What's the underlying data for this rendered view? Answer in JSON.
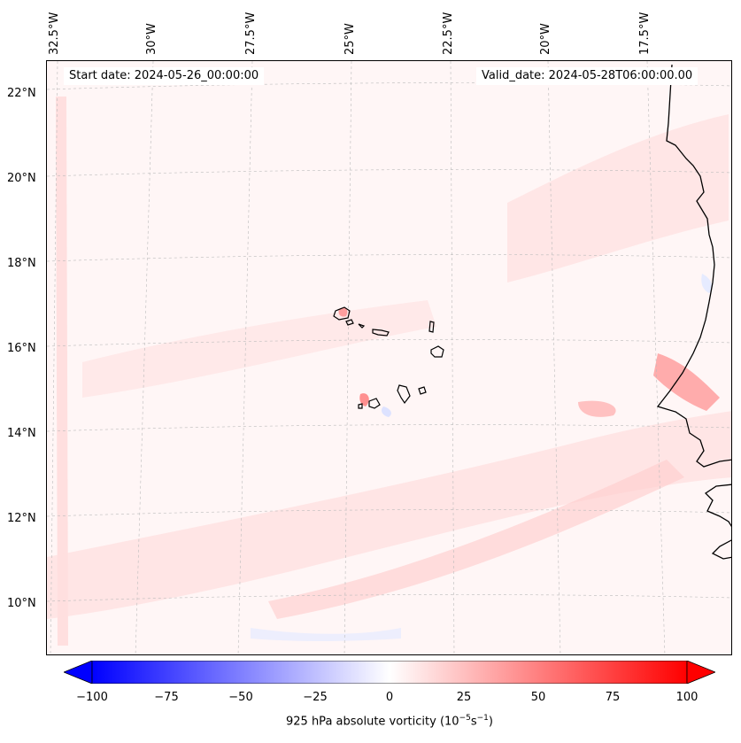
{
  "map": {
    "lon_labels": [
      "32.5°W",
      "30°W",
      "27.5°W",
      "25°W",
      "22.5°W",
      "20°W",
      "17.5°W"
    ],
    "lat_labels": [
      "22°N",
      "20°N",
      "18°N",
      "16°N",
      "14°N",
      "12°N",
      "10°N"
    ],
    "start_date": "Start date: 2024-05-26_00:00:00",
    "valid_date": "Valid_date: 2024-05-28T06:00:00.00"
  },
  "colorbar": {
    "ticks": [
      "−100",
      "−75",
      "−50",
      "−25",
      "0",
      "25",
      "50",
      "75",
      "100"
    ],
    "label": "925 hPa absolute vorticity (10",
    "label_exp1": "−5",
    "label_mid": "s",
    "label_exp2": "−1",
    "label_end": ")",
    "min": -100,
    "max": 100,
    "neg_color": "#0000ff",
    "pos_color": "#ff0000"
  }
}
